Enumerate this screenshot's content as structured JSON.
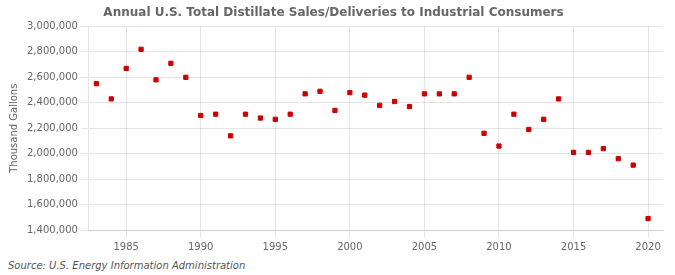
{
  "chart_data": {
    "type": "scatter",
    "title": "Annual U.S. Total Distillate Sales/Deliveries to Industrial Consumers",
    "ylabel": "Thousand Gallons",
    "annotations": [
      "Source: U.S. Energy Information Administration"
    ],
    "x": [
      1983,
      1984,
      1985,
      1986,
      1987,
      1988,
      1989,
      1990,
      1991,
      1992,
      1993,
      1994,
      1995,
      1996,
      1997,
      1998,
      1999,
      2000,
      2001,
      2002,
      2003,
      2004,
      2005,
      2006,
      2007,
      2008,
      2009,
      2010,
      2011,
      2012,
      2013,
      2014,
      2015,
      2016,
      2017,
      2018,
      2019,
      2020
    ],
    "values": [
      2550000,
      2430000,
      2670000,
      2820000,
      2580000,
      2710000,
      2600000,
      2300000,
      2310000,
      2140000,
      2310000,
      2280000,
      2270000,
      2310000,
      2470000,
      2490000,
      2340000,
      2480000,
      2460000,
      2380000,
      2410000,
      2370000,
      2470000,
      2470000,
      2470000,
      2600000,
      2160000,
      2060000,
      2310000,
      2190000,
      2270000,
      2430000,
      2010000,
      2010000,
      2040000,
      1960000,
      1910000,
      1490000
    ],
    "color": "#CC0000",
    "marker": "square",
    "grid": true,
    "xlim": [
      1982.5,
      2021
    ],
    "xticks": [
      1985,
      1990,
      1995,
      2000,
      2005,
      2010,
      2015,
      2020
    ],
    "ylim": [
      1400000,
      3000000
    ],
    "yticks": [
      {
        "value": 1400000,
        "label": "1,400,000"
      },
      {
        "value": 1600000,
        "label": "1,600,000"
      },
      {
        "value": 1800000,
        "label": "1,800,000"
      },
      {
        "value": 2000000,
        "label": "2,000,000"
      },
      {
        "value": 2200000,
        "label": "2,200,000"
      },
      {
        "value": 2400000,
        "label": "2,400,000"
      },
      {
        "value": 2600000,
        "label": "2,600,000"
      },
      {
        "value": 2800000,
        "label": "2,800,000"
      },
      {
        "value": 3000000,
        "label": "3,000,000"
      }
    ]
  }
}
